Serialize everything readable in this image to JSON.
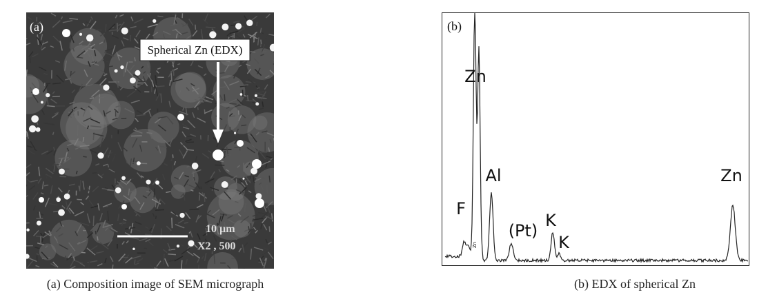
{
  "panel_a": {
    "label": "(a)",
    "annotation": "Spherical Zn (EDX)",
    "scale_text": "10 µm",
    "magnification": "X2 , 500",
    "caption": "(a) Composition image of SEM micrograph"
  },
  "panel_b": {
    "label": "(b)",
    "peaks": [
      "Zn",
      "Al",
      "F",
      "(Pt)",
      "K",
      "K",
      "Zn"
    ],
    "small_label": "Zn",
    "caption": "(b) EDX of spherical Zn"
  }
}
